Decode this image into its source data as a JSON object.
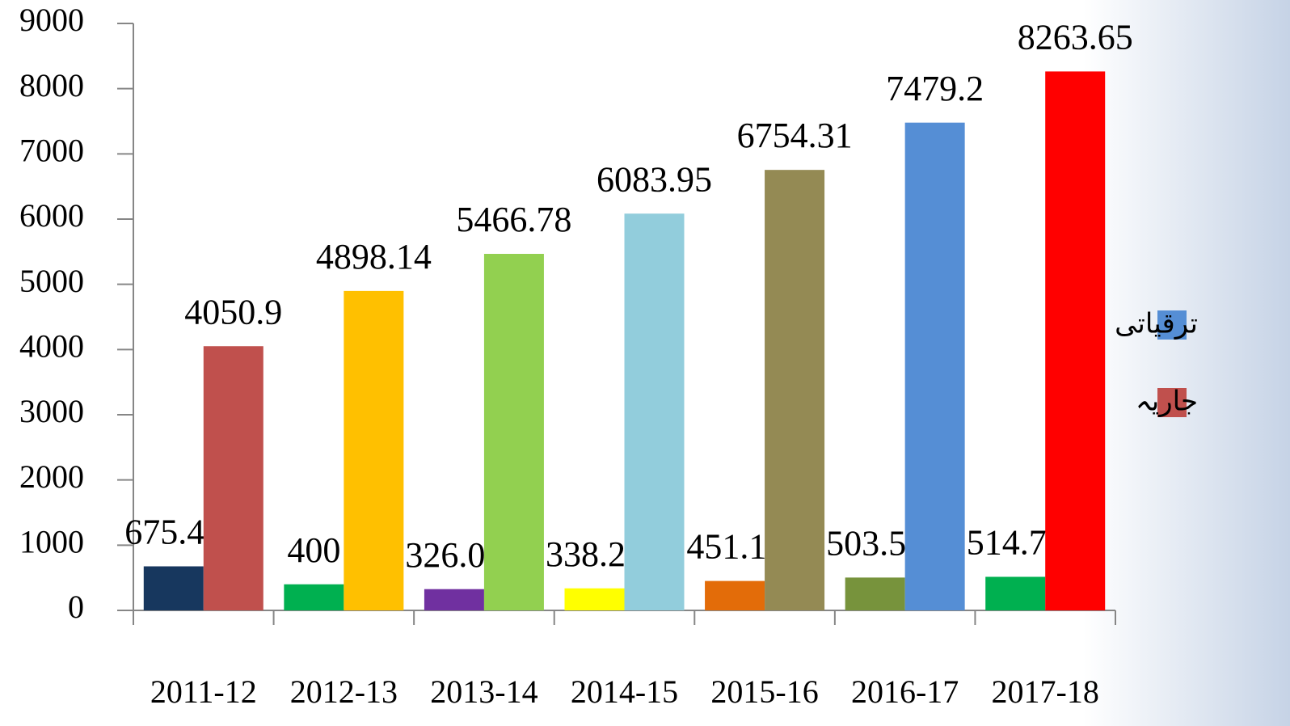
{
  "chart_data": {
    "type": "bar",
    "categories": [
      "2011-12",
      "2012-13",
      "2013-14",
      "2014-15",
      "2015-16",
      "2016-17",
      "2017-18"
    ],
    "series": [
      {
        "name": "ترقیاتی",
        "color": "#558ed5",
        "values": [
          675.46,
          400,
          326.03,
          338.24,
          451.11,
          503.54,
          514.76
        ],
        "colors": [
          "#17375e",
          "#00b050",
          "#7030a0",
          "#ffff00",
          "#e36c09",
          "#77933c",
          "#00b050"
        ]
      },
      {
        "name": "جاریہ",
        "color": "#c0504d",
        "values": [
          4050.9,
          4898.14,
          5466.78,
          6083.95,
          6754.31,
          7479.2,
          8263.65
        ],
        "colors": [
          "#c0504d",
          "#ffc000",
          "#92d050",
          "#92cddc",
          "#948a54",
          "#558ed5",
          "#ff0000"
        ]
      }
    ],
    "ylim": [
      0,
      9000
    ],
    "yticks": [
      0,
      1000,
      2000,
      3000,
      4000,
      5000,
      6000,
      7000,
      8000,
      9000
    ],
    "legend": "right"
  }
}
